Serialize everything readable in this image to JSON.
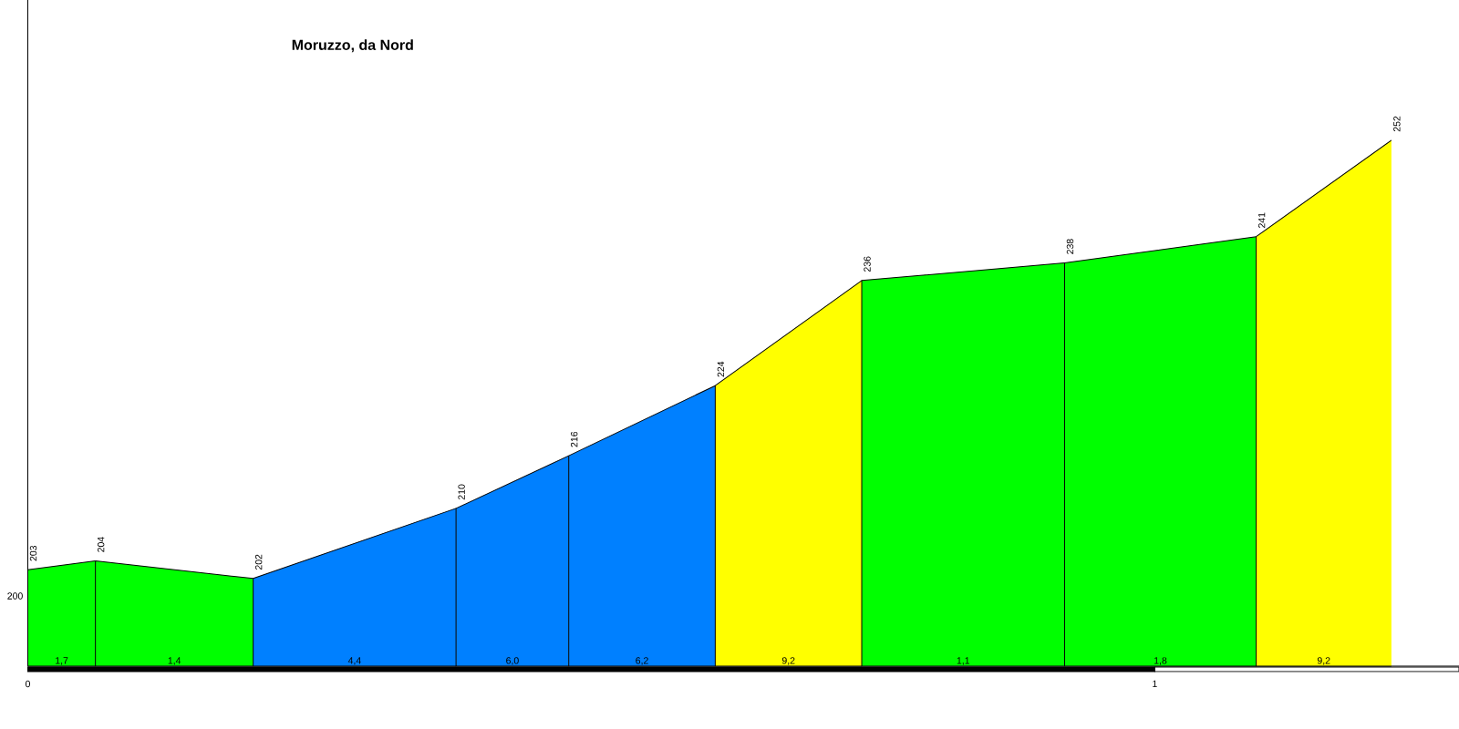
{
  "chart_data": {
    "type": "area",
    "title": "Moruzzo, da Nord",
    "xlim": [
      0,
      1.27
    ],
    "xticks": [
      0,
      1
    ],
    "ylim": [
      192,
      268
    ],
    "series": [
      {
        "color": "#00ff00",
        "x": [
          0,
          0.06
        ],
        "values": [
          203,
          204
        ],
        "value_labels": [
          "203",
          "204"
        ]
      },
      {
        "color": "#00ff00",
        "x": [
          0.06,
          0.2
        ],
        "values": [
          204,
          202
        ],
        "value_labels": [
          null,
          "202"
        ]
      },
      {
        "color": "#0080ff",
        "x": [
          0.2,
          0.38
        ],
        "values": [
          202,
          210
        ],
        "value_labels": [
          null,
          "210"
        ]
      },
      {
        "color": "#0080ff",
        "x": [
          0.38,
          0.48
        ],
        "values": [
          210,
          216
        ],
        "value_labels": [
          null,
          "216"
        ]
      },
      {
        "color": "#0080ff",
        "x": [
          0.48,
          0.61
        ],
        "values": [
          216,
          224
        ],
        "value_labels": [
          null,
          "224"
        ]
      },
      {
        "color": "#ffff00",
        "x": [
          0.61,
          0.74
        ],
        "values": [
          224,
          236
        ],
        "value_labels": [
          null,
          "236"
        ]
      },
      {
        "color": "#00ff00",
        "x": [
          0.74,
          0.92
        ],
        "values": [
          236,
          238
        ],
        "value_labels": [
          null,
          "238"
        ]
      },
      {
        "color": "#00ff00",
        "x": [
          0.92,
          1.09
        ],
        "values": [
          238,
          241
        ],
        "value_labels": [
          null,
          "241"
        ]
      },
      {
        "color": "#ffff00",
        "x": [
          1.09,
          1.21
        ],
        "values": [
          241,
          252
        ],
        "value_labels": [
          null,
          "252"
        ]
      }
    ],
    "annotations": [
      "200",
      {
        "text": "1,7",
        "x": 0.03,
        "y": 192
      },
      {
        "text": "1,4",
        "x": 0.13,
        "y": 192
      },
      {
        "text": "4,4",
        "x": 0.29,
        "y": 192
      },
      {
        "text": "6,0",
        "x": 0.43,
        "y": 192
      },
      {
        "text": "6,2",
        "x": 0.545,
        "y": 192
      },
      {
        "text": "9,2",
        "x": 0.675,
        "y": 192
      },
      {
        "text": "1,1",
        "x": 0.83,
        "y": 192
      },
      {
        "text": "1,8",
        "x": 1.005,
        "y": 192
      },
      {
        "text": "9,2",
        "x": 1.15,
        "y": 192
      }
    ]
  }
}
